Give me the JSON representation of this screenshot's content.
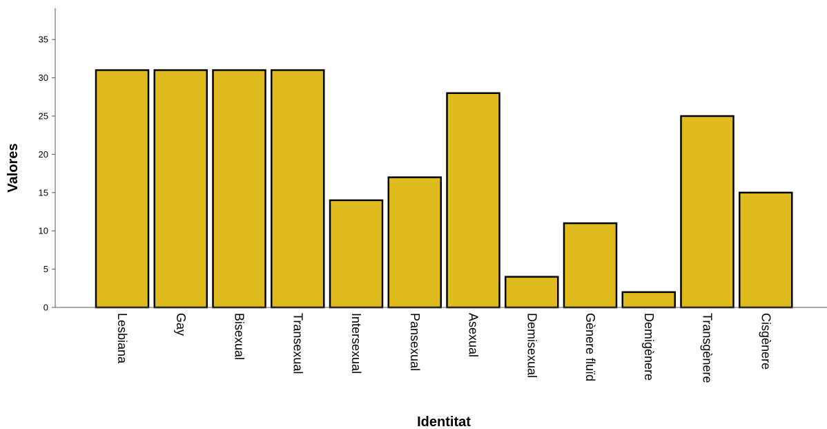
{
  "chart_data": {
    "type": "bar",
    "title": "",
    "xlabel": "Identitat",
    "ylabel": "Valores",
    "categories": [
      "Lesbiana",
      "Gay",
      "Bisexual",
      "Transexual",
      "Intersexual",
      "Pansexual",
      "Asexual",
      "Demisexual",
      "Gènere fluïd",
      "Demigènere",
      "Transgènere",
      "Cisgènere"
    ],
    "values": [
      31,
      31,
      31,
      31,
      14,
      17,
      28,
      4,
      11,
      2,
      25,
      15
    ],
    "ylim": [
      0,
      38
    ],
    "yticks": [
      0,
      5,
      10,
      15,
      20,
      25,
      30,
      35
    ],
    "grid": false,
    "legend": "none",
    "colors": {
      "bar_fill": "#E0BB1E",
      "bar_stroke": "#000000",
      "axis": "#555555"
    }
  }
}
